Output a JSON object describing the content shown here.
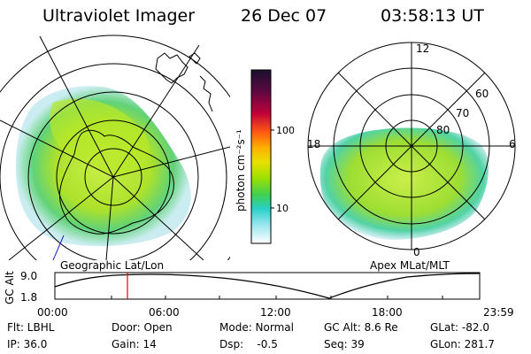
{
  "header": {
    "instrument": "Ultraviolet Imager",
    "date": "26 Dec 07",
    "time": "03:58:13 UT"
  },
  "left_panel": {
    "caption": "Geographic Lat/Lon"
  },
  "right_panel": {
    "caption": "Apex MLat/MLT",
    "hour_labels": {
      "top": "12",
      "left": "18",
      "right": "6",
      "bottom": "0"
    },
    "lat_labels": [
      "60",
      "70",
      "80"
    ]
  },
  "colorbar": {
    "label": "photon cm⁻²s⁻¹",
    "tick_labels": [
      "100",
      "10"
    ],
    "colors": [
      "#1a1030",
      "#b0004a",
      "#ff7000",
      "#ffd200",
      "#9ee000",
      "#30d070",
      "#30d8e8",
      "#ffffff"
    ]
  },
  "altitude_chart": {
    "ylabel": "GC Alt",
    "yticks": [
      "9.0",
      "1.8"
    ],
    "xticks": [
      "00:00",
      "06:00",
      "12:00",
      "18:00",
      "23:59"
    ],
    "marker_color": "#e00000"
  },
  "info_rows": [
    [
      "Flt: LBHL",
      "Door: Open",
      "Mode: Normal",
      "GC Alt: 8.6 Re",
      "GLat: -82.0"
    ],
    [
      "IP: 36.0",
      "Gain: 14",
      "Dsp:    -0.5",
      "Seq: 39",
      "GLon: 281.7"
    ]
  ]
}
